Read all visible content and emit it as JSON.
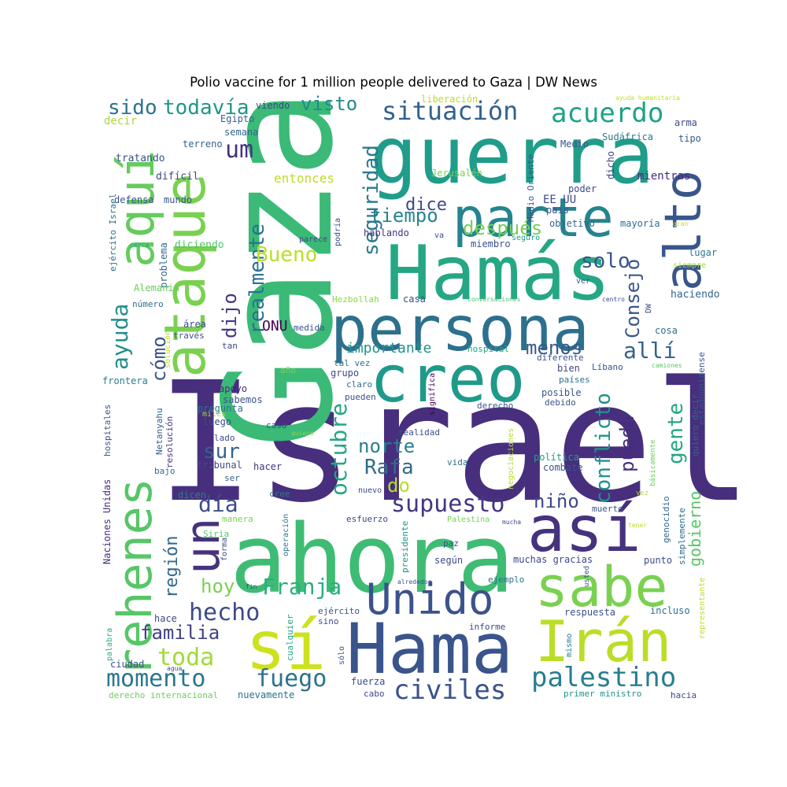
{
  "title": "Polio vaccine for 1 million people delivered to Gaza | DW News",
  "words": [
    {
      "text": "Israel",
      "color": "#472f7d"
    },
    {
      "text": "Gaza",
      "color": "#3aba76"
    },
    {
      "text": "ahora",
      "color": "#3fbc73"
    },
    {
      "text": "Hamás",
      "color": "#26a784"
    },
    {
      "text": "guerra",
      "color": "#1f9d8a"
    },
    {
      "text": "persona",
      "color": "#2d708e"
    },
    {
      "text": "creo",
      "color": "#1f9a8a"
    },
    {
      "text": "Hama",
      "color": "#3a548c"
    },
    {
      "text": "sí",
      "color": "#cde11d"
    },
    {
      "text": "así",
      "color": "#46327e"
    },
    {
      "text": "Irán",
      "color": "#bade28"
    },
    {
      "text": "sabe",
      "color": "#7ad151"
    },
    {
      "text": "parte",
      "color": "#25848e"
    },
    {
      "text": "ataque",
      "color": "#7ad151"
    },
    {
      "text": "rehenes",
      "color": "#56c667"
    },
    {
      "text": "aquí",
      "color": "#65cb5e"
    },
    {
      "text": "alto",
      "color": "#39568c"
    },
    {
      "text": "un",
      "color": "#46337e"
    },
    {
      "text": "Unido",
      "color": "#3b528b"
    },
    {
      "text": "situación",
      "color": "#33628d"
    },
    {
      "text": "acuerdo",
      "color": "#1fa188"
    },
    {
      "text": "palestino",
      "color": "#277f8e"
    },
    {
      "text": "civiles",
      "color": "#3b528b"
    },
    {
      "text": "momento",
      "color": "#2a768e"
    },
    {
      "text": "fuego",
      "color": "#2c728e"
    },
    {
      "text": "supuesto",
      "color": "#453781"
    },
    {
      "text": "hecho",
      "color": "#3e4a89"
    },
    {
      "text": "toda",
      "color": "#9fda3a"
    },
    {
      "text": "Franja",
      "color": "#29af7f"
    },
    {
      "text": "familia",
      "color": "#424086"
    },
    {
      "text": "hoy",
      "color": "#7ad151"
    },
    {
      "text": "región",
      "color": "#31688e"
    },
    {
      "text": "día",
      "color": "#3e4c8a"
    },
    {
      "text": "sur",
      "color": "#33638d"
    },
    {
      "text": "ayuda",
      "color": "#228d8d"
    },
    {
      "text": "cómo",
      "color": "#3b528b"
    },
    {
      "text": "realmente",
      "color": "#2c718e"
    },
    {
      "text": "dijo",
      "color": "#453882"
    },
    {
      "text": "octubre",
      "color": "#22a884"
    },
    {
      "text": "norte",
      "color": "#26818e"
    },
    {
      "text": "Rafa",
      "color": "#2f6c8e"
    },
    {
      "text": "do",
      "color": "#b5de2b"
    },
    {
      "text": "niño",
      "color": "#3f4889"
    },
    {
      "text": "puede",
      "color": "#472d7b"
    },
    {
      "text": "conflicto",
      "color": "#21918c"
    },
    {
      "text": "gente",
      "color": "#22a785"
    },
    {
      "text": "allí",
      "color": "#34618d"
    },
    {
      "text": "menos",
      "color": "#38588c"
    },
    {
      "text": "Consejo",
      "color": "#39568c"
    },
    {
      "text": "solo",
      "color": "#3b528b"
    },
    {
      "text": "después",
      "color": "#75d054"
    },
    {
      "text": "tiempo",
      "color": "#25848e"
    },
    {
      "text": "dice",
      "color": "#3e4a89"
    },
    {
      "text": "Bueno",
      "color": "#bade28"
    },
    {
      "text": "seguridad",
      "color": "#2a788e"
    },
    {
      "text": "entonces",
      "color": "#bade28"
    },
    {
      "text": "importante",
      "color": "#20928c"
    },
    {
      "text": "visto",
      "color": "#238a8d"
    },
    {
      "text": "todavía",
      "color": "#1f958b"
    },
    {
      "text": "sido",
      "color": "#2c728e"
    },
    {
      "text": "um",
      "color": "#46327e"
    },
    {
      "text": "gobierno",
      "color": "#56c667"
    },
    {
      "text": "ONU",
      "color": "#440154"
    },
    {
      "text": "EE UU",
      "color": "#3e4a89"
    }
  ],
  "small_words": [
    {
      "text": "liberación",
      "color": "#b8de29"
    },
    {
      "text": "ayuda humanitaria",
      "color": "#c2df23"
    },
    {
      "text": "Egipto",
      "color": "#35608d"
    },
    {
      "text": "viendo",
      "color": "#414287"
    },
    {
      "text": "decir",
      "color": "#a8db34"
    },
    {
      "text": "semana",
      "color": "#31688e"
    },
    {
      "text": "arma",
      "color": "#3e4989"
    },
    {
      "text": "Medio",
      "color": "#39568c"
    },
    {
      "text": "Sudáfrica",
      "color": "#2a788e"
    },
    {
      "text": "tipo",
      "color": "#38598c"
    },
    {
      "text": "terreno",
      "color": "#33638d"
    },
    {
      "text": "tratando",
      "color": "#3b528b"
    },
    {
      "text": "dicho",
      "color": "#404588"
    },
    {
      "text": "difícil",
      "color": "#3f4788"
    },
    {
      "text": "poder",
      "color": "#3e4c8a"
    },
    {
      "text": "mientras",
      "color": "#472a7a"
    },
    {
      "text": "Jerusalén",
      "color": "#7ad151"
    },
    {
      "text": "defensa",
      "color": "#3a548c"
    },
    {
      "text": "mundo",
      "color": "#3a548c"
    },
    {
      "text": "país",
      "color": "#3b528b"
    },
    {
      "text": "objetivo",
      "color": "#32658e"
    },
    {
      "text": "mayoría",
      "color": "#2e6e8e"
    },
    {
      "text": "gran",
      "color": "#c8e020"
    },
    {
      "text": "hablando",
      "color": "#46327e"
    },
    {
      "text": "podría",
      "color": "#3d4d8a"
    },
    {
      "text": "parece",
      "color": "#414487"
    },
    {
      "text": "va",
      "color": "#3e4c8a"
    },
    {
      "text": "seguro",
      "color": "#1f9e89"
    },
    {
      "text": "miembro",
      "color": "#3b518b"
    },
    {
      "text": "diciendo",
      "color": "#50c46a"
    },
    {
      "text": "cerca",
      "color": "#1fa187"
    },
    {
      "text": "problema",
      "color": "#31688e"
    },
    {
      "text": "lugar",
      "color": "#2a788e"
    },
    {
      "text": "siempre",
      "color": "#9fda3a"
    },
    {
      "text": "Alemania",
      "color": "#6ccd5a"
    },
    {
      "text": "ver",
      "color": "#3b528b"
    },
    {
      "text": "Hezbollah",
      "color": "#8bd646"
    },
    {
      "text": "casa",
      "color": "#3f4788"
    },
    {
      "text": "conversaciones",
      "color": "#48c16e"
    },
    {
      "text": "centro",
      "color": "#3f4788"
    },
    {
      "text": "haciendo",
      "color": "#32658e"
    },
    {
      "text": "número",
      "color": "#2e6e8e"
    },
    {
      "text": "área",
      "color": "#3e4a89"
    },
    {
      "text": "medida",
      "color": "#3a548c"
    },
    {
      "text": "cosa",
      "color": "#2e6e8e"
    },
    {
      "text": "través",
      "color": "#3b528b"
    },
    {
      "text": "estadounidense",
      "color": "#38588c"
    },
    {
      "text": "tan",
      "color": "#3e4a89"
    },
    {
      "text": "solución",
      "color": "#b2dd2d"
    },
    {
      "text": "hospital",
      "color": "#20a486"
    },
    {
      "text": "diferente",
      "color": "#3b528b"
    },
    {
      "text": "tal vez",
      "color": "#2e6e8e"
    },
    {
      "text": "grupo",
      "color": "#3f4889"
    },
    {
      "text": "Líbano",
      "color": "#3a548c"
    },
    {
      "text": "camiones",
      "color": "#56c667"
    },
    {
      "text": "año",
      "color": "#75d054"
    },
    {
      "text": "bien",
      "color": "#404688"
    },
    {
      "text": "países",
      "color": "#2c728e"
    },
    {
      "text": "claro",
      "color": "#2e6e8e"
    },
    {
      "text": "frontera",
      "color": "#277f8e"
    },
    {
      "text": "apoyo",
      "color": "#472d7b"
    },
    {
      "text": "significa",
      "color": "#440154"
    },
    {
      "text": "posible",
      "color": "#38598c"
    },
    {
      "text": "debido",
      "color": "#39568c"
    },
    {
      "text": "sabemos",
      "color": "#3b528b"
    },
    {
      "text": "pueden",
      "color": "#3e4c8a"
    },
    {
      "text": "pregunta",
      "color": "#2c718e"
    },
    {
      "text": "derecho",
      "color": "#3b528b"
    },
    {
      "text": "quiero decir",
      "color": "#33638d"
    },
    {
      "text": "miles",
      "color": "#90d743"
    },
    {
      "text": "luego",
      "color": "#3e4a89"
    },
    {
      "text": "hospitales",
      "color": "#3b528b"
    },
    {
      "text": "Netanyahu",
      "color": "#34618d"
    },
    {
      "text": "caso",
      "color": "#3e4989"
    },
    {
      "text": "quiere",
      "color": "#8bd646"
    },
    {
      "text": "realidad",
      "color": "#3e4c8a"
    },
    {
      "text": "lado",
      "color": "#3e4a89"
    },
    {
      "text": "negociaciones",
      "color": "#b5de2b"
    },
    {
      "text": "básicamente",
      "color": "#6ccd5a"
    },
    {
      "text": "tribunal",
      "color": "#3e4a89"
    },
    {
      "text": "hacer",
      "color": "#46327e"
    },
    {
      "text": "vida",
      "color": "#2d708e"
    },
    {
      "text": "política",
      "color": "#1f9e89"
    },
    {
      "text": "combate",
      "color": "#3a548c"
    },
    {
      "text": "bajo",
      "color": "#2e6e8e"
    },
    {
      "text": "ser",
      "color": "#33638d"
    },
    {
      "text": "nuevo",
      "color": "#3e4989"
    },
    {
      "text": "vez",
      "color": "#bade28"
    },
    {
      "text": "dicen",
      "color": "#277f8e"
    },
    {
      "text": "cree",
      "color": "#2a788e"
    },
    {
      "text": "genocidio",
      "color": "#31688e"
    },
    {
      "text": "muerto",
      "color": "#3b528b"
    },
    {
      "text": "manera",
      "color": "#7ad151"
    },
    {
      "text": "esfuerzo",
      "color": "#3e4989"
    },
    {
      "text": "Palestina",
      "color": "#75d054"
    },
    {
      "text": "mucha",
      "color": "#3e4a89"
    },
    {
      "text": "tener",
      "color": "#bade28"
    },
    {
      "text": "Siria",
      "color": "#56c667"
    },
    {
      "text": "operación",
      "color": "#2a788e"
    },
    {
      "text": "presidente",
      "color": "#20928c"
    },
    {
      "text": "paz",
      "color": "#3b528b"
    },
    {
      "text": "simplemente",
      "color": "#2c718e"
    },
    {
      "text": "forma",
      "color": "#3e4a89"
    },
    {
      "text": "según",
      "color": "#3e4989"
    },
    {
      "text": "Naciones Unidas",
      "color": "#472d7b"
    },
    {
      "text": "muchas gracias",
      "color": "#3f4788"
    },
    {
      "text": "punto",
      "color": "#3e4c8a"
    },
    {
      "text": "alrededor",
      "color": "#3a548c"
    },
    {
      "text": "ejemplo",
      "color": "#2c728e"
    },
    {
      "text": "usted",
      "color": "#3b528b"
    },
    {
      "text": "fin",
      "color": "#3e4989"
    },
    {
      "text": "representante",
      "color": "#b8de29"
    },
    {
      "text": "cualquier",
      "color": "#20a486"
    },
    {
      "text": "hace",
      "color": "#3e4a89"
    },
    {
      "text": "ejército",
      "color": "#3b528b"
    },
    {
      "text": "sino",
      "color": "#3e4c8a"
    },
    {
      "text": "respuesta",
      "color": "#3b528b"
    },
    {
      "text": "incluso",
      "color": "#2c718e"
    },
    {
      "text": "palabra",
      "color": "#29af7f"
    },
    {
      "text": "informe",
      "color": "#3e4a89"
    },
    {
      "text": "mismo",
      "color": "#2a788e"
    },
    {
      "text": "ciudad",
      "color": "#3e4a89"
    },
    {
      "text": "sólo",
      "color": "#3a548c"
    },
    {
      "text": "agua",
      "color": "#3e4a89"
    },
    {
      "text": "fuerza",
      "color": "#3e4989"
    },
    {
      "text": "derecho internacional",
      "color": "#6ccd5a"
    },
    {
      "text": "nuevamente",
      "color": "#2c718e"
    },
    {
      "text": "cabo",
      "color": "#3f4788"
    },
    {
      "text": "primer ministro",
      "color": "#20928c"
    },
    {
      "text": "hacia",
      "color": "#3f4788"
    },
    {
      "text": "Medio Oriente",
      "color": "#3a548c"
    },
    {
      "text": "ejército Israel",
      "color": "#2c718e"
    },
    {
      "text": "DW",
      "color": "#3e4a89"
    },
    {
      "text": "resolución",
      "color": "#46327e"
    }
  ]
}
